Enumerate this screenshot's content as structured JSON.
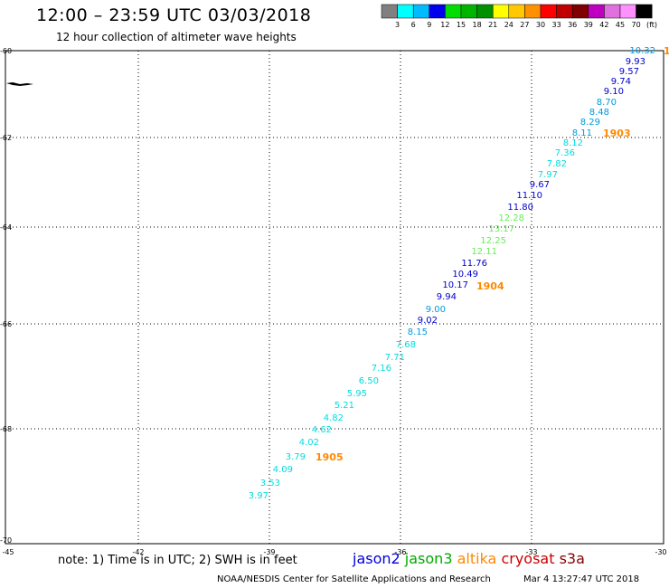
{
  "header": {
    "title": "12:00 – 23:59 UTC 03/03/2018",
    "subtitle": "12 hour collection of altimeter wave heights"
  },
  "colorbar": {
    "unit_label": "(ft)",
    "ticks": [
      "3",
      "6",
      "9",
      "12",
      "15",
      "18",
      "21",
      "24",
      "27",
      "30",
      "33",
      "36",
      "39",
      "42",
      "45",
      "70"
    ],
    "colors": [
      "#808080",
      "#00ffff",
      "#00bbff",
      "#0000ee",
      "#00dd00",
      "#00b400",
      "#009000",
      "#ffff00",
      "#ffc800",
      "#ff9000",
      "#ff0000",
      "#c00000",
      "#800000",
      "#c000c0",
      "#e070e0",
      "#ff90ff",
      "#000000"
    ]
  },
  "map": {
    "lon_labels": [
      "-45",
      "-42",
      "-39",
      "-36",
      "-33",
      "-30"
    ],
    "lat_labels": [
      "-60",
      "-62",
      "-64",
      "-66",
      "-68",
      "-70"
    ],
    "palette": {
      "cyan": "#00dddd",
      "blue_light": "#0099dd",
      "blue": "#0000cc",
      "green": "#66ee55",
      "orange": "#ff8800"
    },
    "swh_points": [
      {
        "label": "10.32",
        "c": "blue_light"
      },
      {
        "label": "9.93",
        "c": "blue"
      },
      {
        "label": "9.57",
        "c": "blue"
      },
      {
        "label": "9.74",
        "c": "blue"
      },
      {
        "label": "9.10",
        "c": "blue"
      },
      {
        "label": "8.70",
        "c": "blue_light"
      },
      {
        "label": "8.48",
        "c": "blue_light"
      },
      {
        "label": "8.29",
        "c": "blue_light"
      },
      {
        "label": "8.11",
        "c": "blue_light"
      },
      {
        "label": "8.12",
        "c": "cyan"
      },
      {
        "label": "7.36",
        "c": "cyan"
      },
      {
        "label": "7.82",
        "c": "cyan"
      },
      {
        "label": "7.97",
        "c": "cyan"
      },
      {
        "label": "9.67",
        "c": "blue"
      },
      {
        "label": "11.10",
        "c": "blue"
      },
      {
        "label": "11.80",
        "c": "blue"
      },
      {
        "label": "12.28",
        "c": "green"
      },
      {
        "label": "13.17",
        "c": "green"
      },
      {
        "label": "12.25",
        "c": "green"
      },
      {
        "label": "12.11",
        "c": "green"
      },
      {
        "label": "11.76",
        "c": "blue"
      },
      {
        "label": "10.49",
        "c": "blue"
      },
      {
        "label": "10.17",
        "c": "blue"
      },
      {
        "label": "9.94",
        "c": "blue"
      },
      {
        "label": "9.00",
        "c": "blue_light"
      },
      {
        "label": "9.02",
        "c": "blue"
      },
      {
        "label": "8.15",
        "c": "blue_light"
      },
      {
        "label": "7.68",
        "c": "cyan"
      },
      {
        "label": "7.71",
        "c": "cyan"
      },
      {
        "label": "7.16",
        "c": "cyan"
      },
      {
        "label": "6.50",
        "c": "cyan"
      },
      {
        "label": "5.95",
        "c": "cyan"
      },
      {
        "label": "5.21",
        "c": "cyan"
      },
      {
        "label": "4.82",
        "c": "cyan"
      },
      {
        "label": "4.62",
        "c": "cyan"
      },
      {
        "label": "4.02",
        "c": "cyan"
      },
      {
        "label": "3.79",
        "c": "cyan"
      },
      {
        "label": "4.09",
        "c": "cyan"
      },
      {
        "label": "3.53",
        "c": "cyan"
      },
      {
        "label": "3.97",
        "c": "cyan"
      }
    ],
    "time_labels": [
      "1903",
      "1904",
      "1905"
    ],
    "edge_mark": "1"
  },
  "footer": {
    "note": "note: 1) Time is in UTC; 2) SWH is in feet",
    "legend": [
      {
        "name": "jason2",
        "color": "#0000dd"
      },
      {
        "name": "jason3",
        "color": "#00aa00"
      },
      {
        "name": "altika",
        "color": "#ff8800"
      },
      {
        "name": "cryosat",
        "color": "#cc0000"
      },
      {
        "name": "s3a",
        "color": "#880000"
      }
    ],
    "credit": "NOAA/NESDIS Center for Satellite Applications and Research",
    "timestamp": "Mar  4 13:27:47 UTC 2018"
  }
}
